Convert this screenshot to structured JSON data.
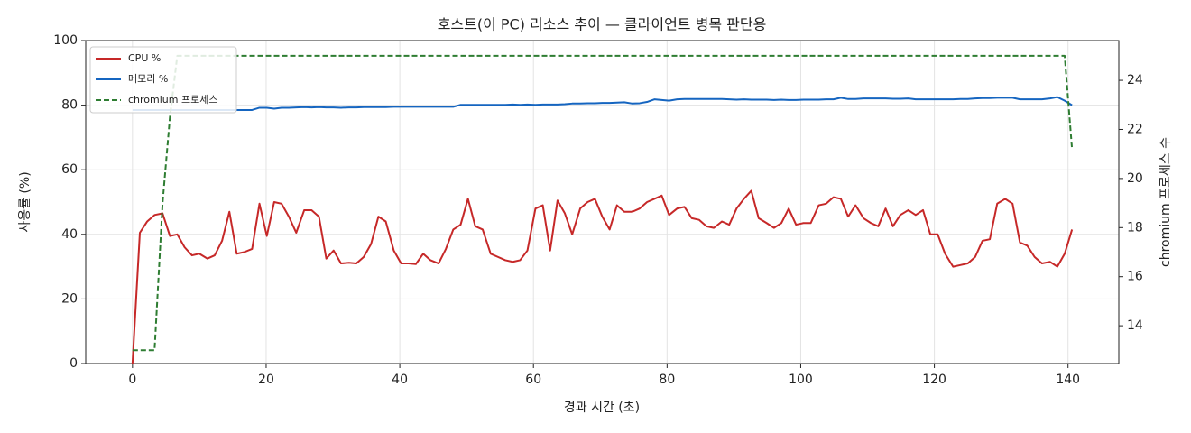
{
  "chart_data": {
    "type": "line",
    "title": "호스트(이 PC) 리소스 추이 — 클라이언트 병목 판단용",
    "xlabel": "경과 시간 (초)",
    "ylabel": "사용률 (%)",
    "y2label": "chromium 프로세스 수",
    "x": [
      0,
      1.1,
      2.2,
      3.3,
      4.5,
      5.6,
      6.7,
      7.8,
      8.9,
      10.0,
      11.2,
      12.3,
      13.4,
      14.5,
      15.6,
      16.7,
      17.9,
      19.0,
      20.1,
      21.2,
      22.3,
      23.4,
      24.5,
      25.7,
      26.8,
      27.9,
      29.0,
      30.1,
      31.2,
      32.4,
      33.5,
      34.6,
      35.7,
      36.8,
      37.9,
      39.1,
      40.2,
      41.3,
      42.4,
      43.5,
      44.6,
      45.8,
      46.9,
      48.0,
      49.1,
      50.2,
      51.3,
      52.4,
      53.6,
      54.7,
      55.8,
      56.9,
      58.0,
      59.1,
      60.3,
      61.4,
      62.5,
      63.6,
      64.7,
      65.8,
      67.0,
      68.1,
      69.2,
      70.3,
      71.4,
      72.5,
      73.6,
      74.8,
      75.9,
      77.0,
      78.1,
      79.2,
      80.3,
      81.5,
      82.6,
      83.7,
      84.8,
      85.9,
      87.0,
      88.2,
      89.3,
      90.4,
      91.5,
      92.6,
      93.7,
      94.9,
      96.0,
      97.1,
      98.2,
      99.3,
      100.4,
      101.5,
      102.7,
      103.8,
      104.9,
      106.0,
      107.1,
      108.2,
      109.4,
      110.5,
      111.6,
      112.7,
      113.8,
      114.9,
      116.1,
      117.2,
      118.3,
      119.4,
      120.5,
      121.6,
      122.8,
      123.9,
      125.0,
      126.1,
      127.2,
      128.3,
      129.4,
      130.6,
      131.7,
      132.8,
      133.9,
      135.0,
      136.1,
      137.3,
      138.4,
      139.5,
      140.6
    ],
    "series": [
      {
        "name": "CPU %",
        "color": "#c62828",
        "values": [
          0,
          40.5,
          44,
          46,
          46.5,
          39.5,
          40,
          36,
          33.5,
          34,
          32.5,
          33.5,
          38,
          47,
          34,
          34.5,
          35.5,
          49.5,
          39.5,
          50,
          49.5,
          45.5,
          40.5,
          47.5,
          47.5,
          45.5,
          32.5,
          35,
          31,
          31.2,
          31,
          33,
          37,
          45.5,
          44,
          35,
          31,
          31,
          30.8,
          34,
          32,
          31,
          35.5,
          41.5,
          43,
          51,
          42.5,
          41.5,
          34,
          33,
          32,
          31.5,
          32,
          35,
          48,
          49,
          35,
          50.5,
          46.5,
          40,
          48,
          50,
          51,
          45.5,
          41.5,
          49,
          47,
          47,
          48,
          50,
          51,
          52,
          46,
          48,
          48.5,
          45,
          44.5,
          42.5,
          42,
          44,
          43,
          48,
          51,
          53.5,
          45,
          43.5,
          42,
          43.5,
          48,
          43,
          43.5,
          43.5,
          49,
          49.5,
          51.5,
          51,
          45.5,
          49,
          45,
          43.5,
          42.5,
          48,
          42.5,
          46,
          47.5,
          46,
          47.5,
          40,
          40,
          34,
          30,
          30.5,
          31,
          33,
          38,
          38.5,
          49.5,
          51,
          49.5,
          37.5,
          36.5,
          33,
          31,
          31.5,
          30,
          34,
          41.5
        ]
      },
      {
        "name": "메모리 %",
        "color": "#1565c0",
        "values": [
          78.5,
          78.5,
          78.5,
          78.5,
          78.5,
          78.5,
          78.5,
          78.5,
          78.5,
          78.5,
          78.5,
          78.5,
          78.5,
          78.5,
          78.5,
          78.5,
          78.5,
          79.2,
          79.2,
          78.9,
          79.2,
          79.2,
          79.3,
          79.4,
          79.3,
          79.4,
          79.3,
          79.3,
          79.2,
          79.3,
          79.3,
          79.4,
          79.4,
          79.4,
          79.4,
          79.5,
          79.5,
          79.5,
          79.5,
          79.5,
          79.5,
          79.5,
          79.5,
          79.5,
          80.1,
          80.1,
          80.1,
          80.1,
          80.1,
          80.1,
          80.1,
          80.2,
          80.1,
          80.2,
          80.1,
          80.2,
          80.2,
          80.2,
          80.3,
          80.5,
          80.5,
          80.6,
          80.6,
          80.7,
          80.7,
          80.8,
          80.9,
          80.5,
          80.6,
          81.0,
          81.8,
          81.6,
          81.4,
          81.8,
          81.9,
          81.9,
          81.9,
          81.9,
          81.9,
          81.9,
          81.8,
          81.7,
          81.8,
          81.7,
          81.7,
          81.7,
          81.6,
          81.7,
          81.6,
          81.6,
          81.7,
          81.7,
          81.7,
          81.8,
          81.8,
          82.3,
          81.9,
          81.9,
          82.1,
          82.1,
          82.1,
          82.1,
          82.0,
          82.0,
          82.1,
          81.8,
          81.8,
          81.8,
          81.8,
          81.8,
          81.8,
          81.9,
          81.9,
          82.1,
          82.2,
          82.2,
          82.3,
          82.3,
          82.3,
          81.8,
          81.8,
          81.8,
          81.8,
          82.1,
          82.5,
          81.4,
          80.0
        ]
      },
      {
        "name": "chromium 프로세스",
        "color": "#2e7d32",
        "dashed": true,
        "axis": "y2",
        "values": [
          13,
          13,
          13,
          13,
          19,
          22.5,
          25,
          25,
          25,
          25,
          25,
          25,
          25,
          25,
          25,
          25,
          25,
          25,
          25,
          25,
          25,
          25,
          25,
          25,
          25,
          25,
          25,
          25,
          25,
          25,
          25,
          25,
          25,
          25,
          25,
          25,
          25,
          25,
          25,
          25,
          25,
          25,
          25,
          25,
          25,
          25,
          25,
          25,
          25,
          25,
          25,
          25,
          25,
          25,
          25,
          25,
          25,
          25,
          25,
          25,
          25,
          25,
          25,
          25,
          25,
          25,
          25,
          25,
          25,
          25,
          25,
          25,
          25,
          25,
          25,
          25,
          25,
          25,
          25,
          25,
          25,
          25,
          25,
          25,
          25,
          25,
          25,
          25,
          25,
          25,
          25,
          25,
          25,
          25,
          25,
          25,
          25,
          25,
          25,
          25,
          25,
          25,
          25,
          25,
          25,
          25,
          25,
          25,
          25,
          25,
          25,
          25,
          25,
          25,
          25,
          25,
          25,
          25,
          25,
          25,
          25,
          25,
          25,
          25,
          25,
          25,
          21.2
        ]
      }
    ],
    "xlim": [
      -7,
      147.6
    ],
    "xticks": [
      0,
      20,
      40,
      60,
      80,
      100,
      120,
      140
    ],
    "ylim": [
      0,
      100
    ],
    "yticks": [
      0,
      20,
      40,
      60,
      80,
      100
    ],
    "y2lim": [
      12.46,
      25.62
    ],
    "y2ticks": [
      14,
      16,
      18,
      20,
      22,
      24
    ],
    "grid": true,
    "legend": "upper left"
  }
}
